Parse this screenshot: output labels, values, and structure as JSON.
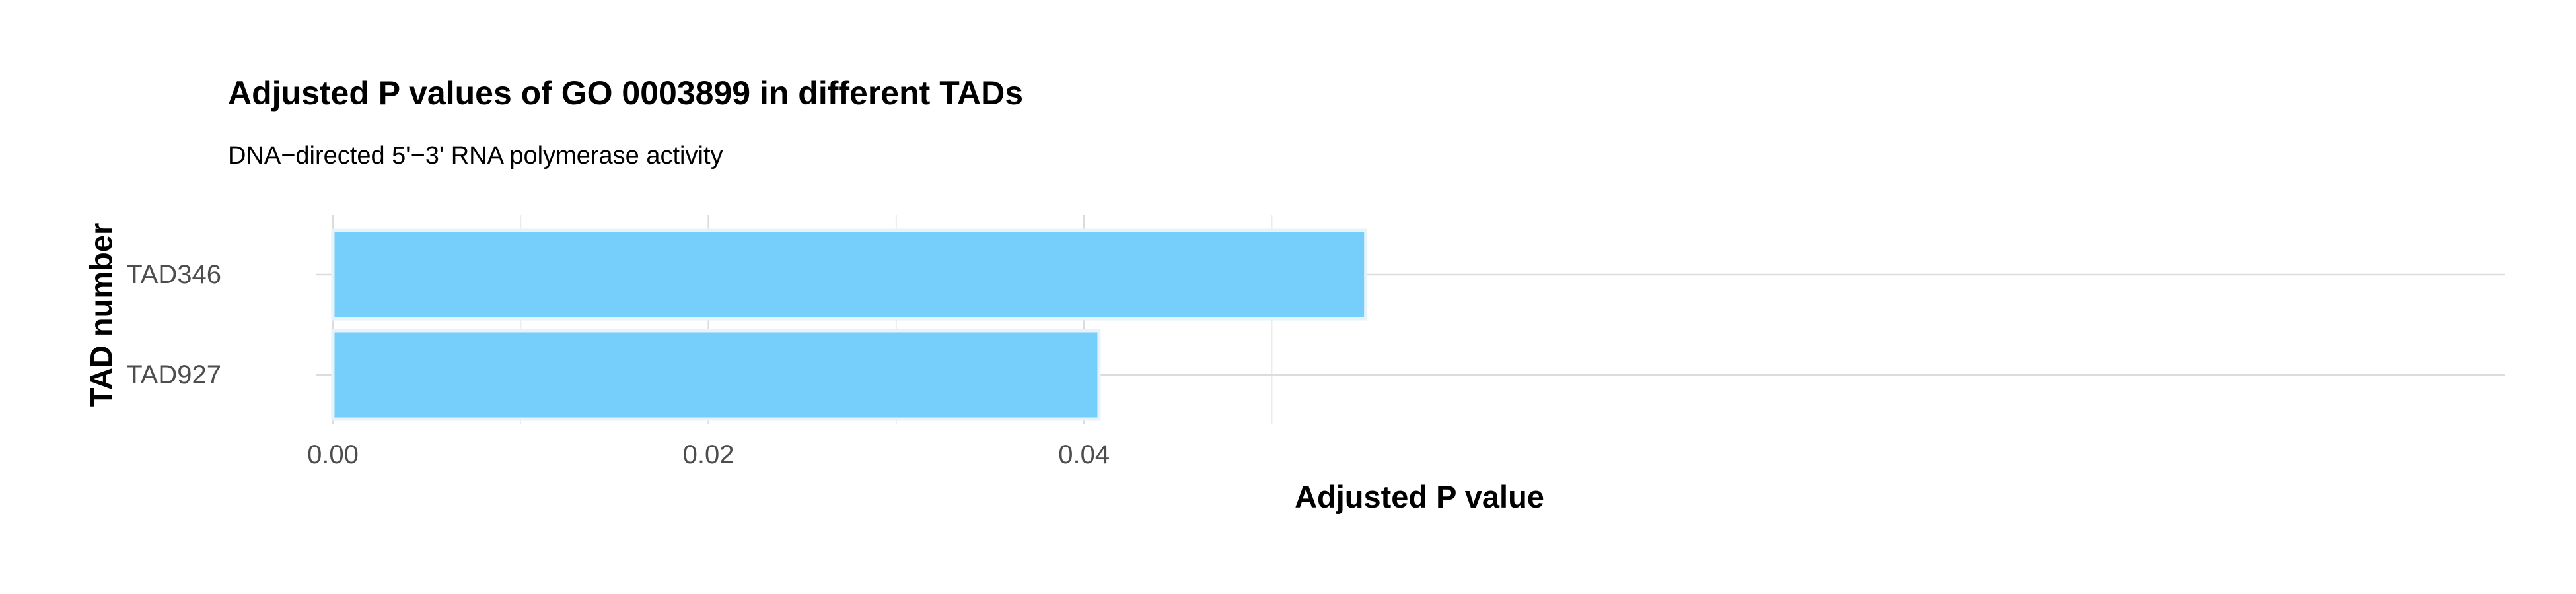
{
  "colors": {
    "bar_fill": "#73cdfb",
    "bar_outline": "#e6f3fb",
    "grid_major": "#dcdcdc",
    "grid_minor": "#ececec",
    "tick_text": "#4d4d4d",
    "title_text": "#000000"
  },
  "chart_data": {
    "type": "bar",
    "orientation": "horizontal",
    "title": "Adjusted P values of GO 0003899 in different TADs",
    "subtitle": "DNA−directed 5'−3' RNA polymerase activity",
    "xlabel": "Adjusted P value",
    "ylabel": "TAD number",
    "categories": [
      "TAD346",
      "TAD927"
    ],
    "values": [
      0.055,
      0.0408
    ],
    "xlim": [
      0,
      0.0578
    ],
    "x_ticks": [
      0.0,
      0.02,
      0.04
    ],
    "x_tick_labels": [
      "0.00",
      "0.02",
      "0.04"
    ],
    "grid": true,
    "legend": "none"
  }
}
